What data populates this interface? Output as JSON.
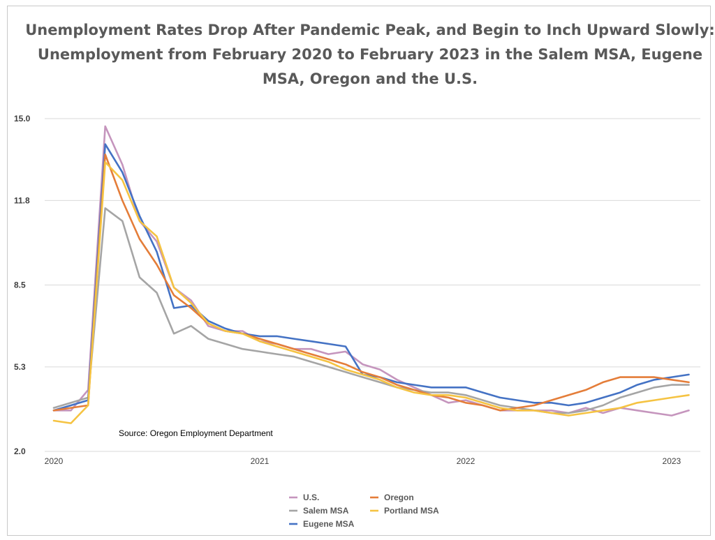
{
  "title": {
    "line1": "Unemployment Rates Drop After Pandemic Peak, and Begin to Inch Upward Slowly:",
    "line2": "Unemployment from February 2020 to February 2023 in the Salem MSA, Eugene",
    "line3": "MSA, Oregon and the U.S."
  },
  "annotation": "Source:  Oregon Employment Department",
  "colors": {
    "us": "#c595bd",
    "salem": "#a5a5a5",
    "eugene": "#4472c4",
    "oregon": "#e47d39",
    "portland": "#f5c342",
    "grid": "#d9d9d9"
  },
  "chart_data": {
    "type": "line",
    "title": "Unemployment Rates Drop After Pandemic Peak, and Begin to Inch Upward Slowly: Unemployment from February 2020 to February 2023 in the Salem MSA, Eugene MSA, Oregon and the U.S.",
    "xlabel": "",
    "ylabel": "",
    "x_start": "2020-01",
    "x_ticks": [
      {
        "label": "2020",
        "month_index": 0
      },
      {
        "label": "2021",
        "month_index": 12
      },
      {
        "label": "2022",
        "month_index": 24
      },
      {
        "label": "2023",
        "month_index": 36
      }
    ],
    "y_ticks": [
      "2.0",
      "5.3",
      "8.5",
      "11.8",
      "15.0"
    ],
    "ylim": [
      2.0,
      15.0
    ],
    "grid": true,
    "legend_position": "bottom",
    "series": [
      {
        "name": "U.S.",
        "color_key": "us",
        "start_month_index": 0,
        "values": [
          3.6,
          3.6,
          4.4,
          14.7,
          13.2,
          11.0,
          10.2,
          8.4,
          7.9,
          6.9,
          6.7,
          6.7,
          6.3,
          6.2,
          6.0,
          6.0,
          5.8,
          5.9,
          5.4,
          5.2,
          4.8,
          4.5,
          4.2,
          3.9,
          4.0,
          3.8,
          3.6,
          3.6,
          3.6,
          3.6,
          3.5,
          3.7,
          3.5,
          3.7,
          3.6,
          3.5,
          3.4,
          3.6
        ]
      },
      {
        "name": "Salem MSA",
        "color_key": "salem",
        "start_month_index": 0,
        "values": [
          3.7,
          3.9,
          4.1,
          11.5,
          11.0,
          8.8,
          8.2,
          6.6,
          6.9,
          6.4,
          6.2,
          6.0,
          5.9,
          5.8,
          5.7,
          5.5,
          5.3,
          5.1,
          4.9,
          4.7,
          4.5,
          4.4,
          4.3,
          4.3,
          4.2,
          4.0,
          3.8,
          3.7,
          3.6,
          3.5,
          3.5,
          3.6,
          3.8,
          4.1,
          4.3,
          4.5,
          4.6,
          4.6
        ]
      },
      {
        "name": "Eugene MSA",
        "color_key": "eugene",
        "start_month_index": 0,
        "values": [
          3.6,
          3.8,
          4.0,
          14.0,
          12.9,
          11.2,
          9.8,
          7.6,
          7.7,
          7.1,
          6.8,
          6.6,
          6.5,
          6.5,
          6.4,
          6.3,
          6.2,
          6.1,
          5.0,
          4.9,
          4.7,
          4.6,
          4.5,
          4.5,
          4.5,
          4.3,
          4.1,
          4.0,
          3.9,
          3.9,
          3.8,
          3.9,
          4.1,
          4.3,
          4.6,
          4.8,
          4.9,
          5.0
        ]
      },
      {
        "name": "Oregon",
        "color_key": "oregon",
        "start_month_index": 0,
        "values": [
          3.6,
          3.7,
          3.8,
          13.6,
          11.8,
          10.3,
          9.3,
          8.1,
          7.6,
          7.0,
          6.7,
          6.6,
          6.4,
          6.2,
          6.0,
          5.8,
          5.6,
          5.4,
          5.1,
          4.9,
          4.6,
          4.4,
          4.2,
          4.1,
          3.9,
          3.8,
          3.6,
          3.7,
          3.8,
          4.0,
          4.2,
          4.4,
          4.7,
          4.9,
          4.9,
          4.9,
          4.8,
          4.7
        ]
      },
      {
        "name": "Portland MSA",
        "color_key": "portland",
        "start_month_index": 0,
        "values": [
          3.2,
          3.1,
          3.8,
          13.3,
          12.6,
          11.0,
          10.4,
          8.4,
          7.8,
          7.0,
          6.7,
          6.6,
          6.3,
          6.1,
          5.9,
          5.7,
          5.5,
          5.2,
          5.0,
          4.8,
          4.5,
          4.3,
          4.2,
          4.2,
          4.1,
          3.9,
          3.7,
          3.6,
          3.6,
          3.5,
          3.4,
          3.5,
          3.6,
          3.7,
          3.9,
          4.0,
          4.1,
          4.2
        ]
      }
    ]
  }
}
